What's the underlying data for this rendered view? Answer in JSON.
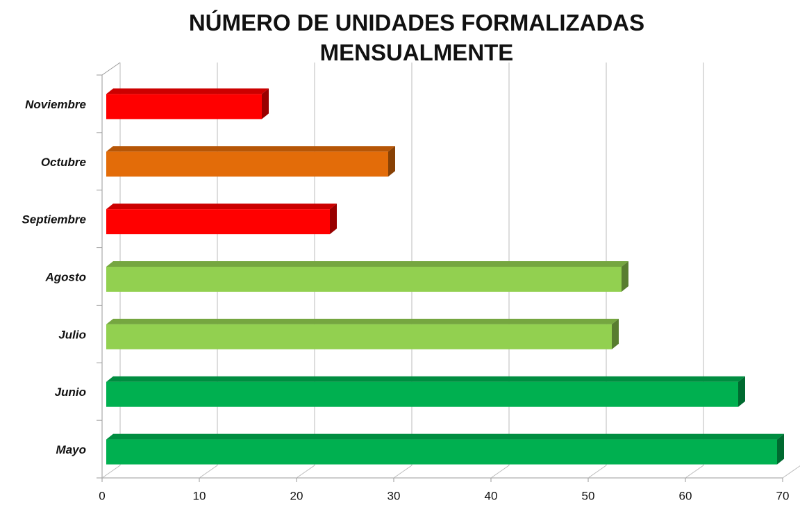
{
  "chart_data": {
    "type": "bar3d_horizontal",
    "title": "NÚMERO DE UNIDADES FORMALIZADAS MENSUALMENTE",
    "categories": [
      "Noviembre",
      "Octubre",
      "Septiembre",
      "Agosto",
      "Julio",
      "Junio",
      "Mayo"
    ],
    "values": [
      16,
      29,
      23,
      53,
      52,
      65,
      69
    ],
    "colors": [
      "#ff0000",
      "#e36c09",
      "#ff0000",
      "#92d050",
      "#92d050",
      "#00b050",
      "#00b050"
    ],
    "xlim": [
      0,
      70
    ],
    "xticks": [
      0,
      10,
      20,
      30,
      40,
      50,
      60,
      70
    ],
    "grid": true
  }
}
